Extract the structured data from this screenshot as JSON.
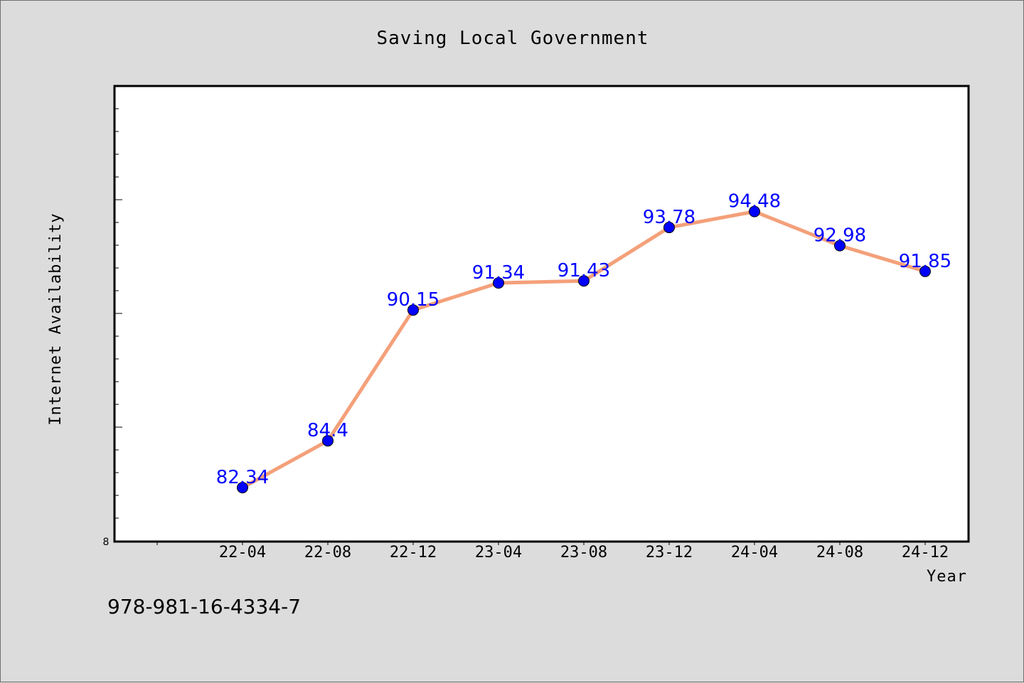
{
  "chart_data": {
    "type": "line",
    "title": "Saving Local Government",
    "xlabel": "Year",
    "ylabel": "Internet Availability",
    "categories": [
      "22-04",
      "22-08",
      "22-12",
      "23-04",
      "23-08",
      "23-12",
      "24-04",
      "24-08",
      "24-12"
    ],
    "series": [
      {
        "values": [
          82.34,
          84.4,
          90.15,
          91.34,
          91.43,
          93.78,
          94.48,
          92.98,
          91.85
        ],
        "color": "#f4a07a",
        "marker_color": "#0000ff"
      }
    ],
    "data_labels": [
      "82.34",
      "84.4",
      "90.15",
      "91.34",
      "91.43",
      "93.78",
      "94.48",
      "92.98",
      "91.85"
    ],
    "ylim": [
      80,
      100
    ],
    "yticks_labeled": [
      "8"
    ],
    "grid": false,
    "label_color": "#0000ff"
  },
  "footer": {
    "isbn": "978-981-16-4334-7"
  }
}
